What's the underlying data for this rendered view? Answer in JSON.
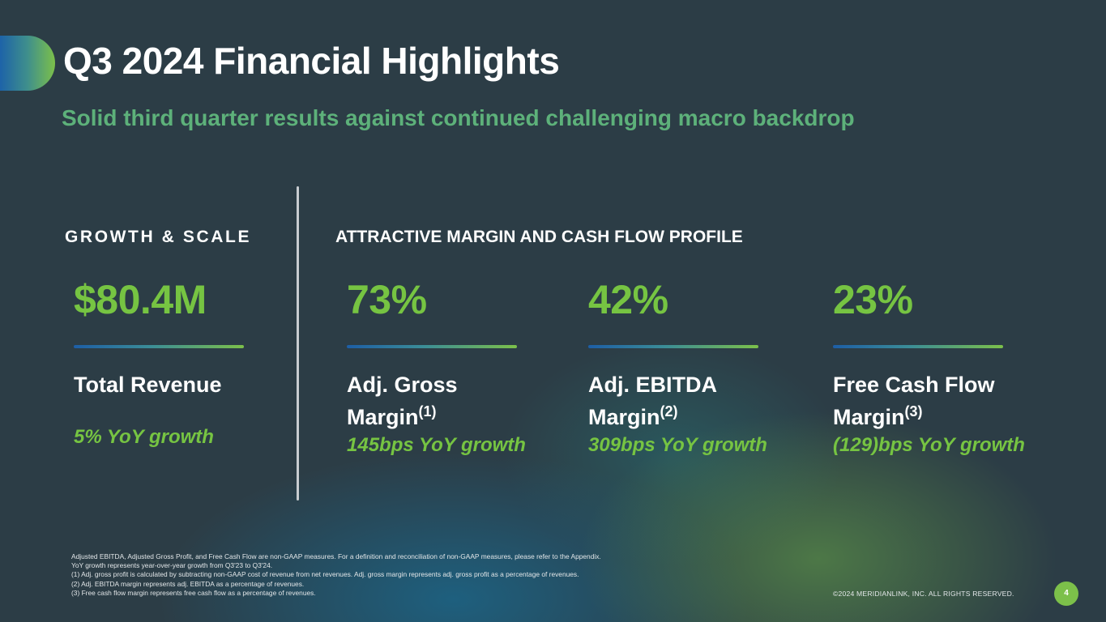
{
  "header": {
    "title": "Q3 2024 Financial Highlights",
    "subtitle": "Solid third quarter results against continued challenging macro backdrop"
  },
  "sections": {
    "growth_heading": "GROWTH & SCALE",
    "margin_heading": "ATTRACTIVE MARGIN AND CASH FLOW PROFILE"
  },
  "metrics": [
    {
      "value": "$80.4M",
      "label_line1": "Total Revenue",
      "label_line2": "",
      "footnote_ref": "",
      "growth": "5% YoY growth"
    },
    {
      "value": "73%",
      "label_line1": "Adj. Gross",
      "label_line2": "Margin",
      "footnote_ref": "(1)",
      "growth": "145bps YoY growth"
    },
    {
      "value": "42%",
      "label_line1": "Adj. EBITDA",
      "label_line2": "Margin",
      "footnote_ref": "(2)",
      "growth": "309bps YoY growth"
    },
    {
      "value": "23%",
      "label_line1": "Free Cash Flow",
      "label_line2": "Margin",
      "footnote_ref": "(3)",
      "growth": "(129)bps YoY growth"
    }
  ],
  "footnotes": [
    "Adjusted EBITDA, Adjusted Gross Profit, and Free Cash Flow are non-GAAP measures. For a definition and reconciliation of non-GAAP measures, please refer to the Appendix.",
    "YoY growth represents year-over-year growth from Q3'23 to Q3'24.",
    "(1)   Adj. gross profit is calculated by subtracting non-GAAP cost of revenue from net revenues. Adj.  gross margin represents adj. gross profit as a percentage of revenues.",
    "(2)   Adj. EBITDA margin represents adj. EBITDA as a percentage of revenues.",
    "(3)   Free cash flow margin represents free cash flow as a percentage of revenues."
  ],
  "footer": {
    "copyright": "©2024 MERIDIANLINK, INC. ALL RIGHTS RESERVED.",
    "page_number": "4"
  },
  "colors": {
    "background": "#2c3d46",
    "accent_green": "#76c442",
    "subtitle_green": "#5db17a",
    "accent_blue": "#1d5ea6"
  }
}
